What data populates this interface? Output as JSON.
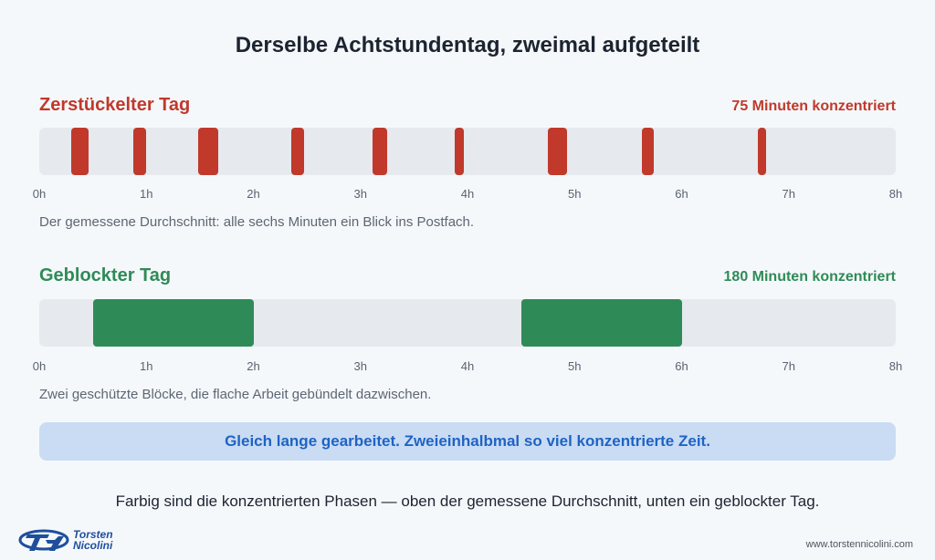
{
  "title": "Derselbe Achtstundentag, zweimal aufgeteilt",
  "chart_data": [
    {
      "type": "bar",
      "orientation": "horizontal-timeline",
      "title": "Zerstückelter Tag",
      "stat": "75 Minuten konzentriert",
      "color": "#c0392b",
      "xlim": [
        0,
        8
      ],
      "x_ticks": [
        "0h",
        "1h",
        "2h",
        "3h",
        "4h",
        "5h",
        "6h",
        "7h",
        "8h"
      ],
      "segments": [
        {
          "start": 0.3,
          "end": 0.46
        },
        {
          "start": 0.88,
          "end": 1.0
        },
        {
          "start": 1.48,
          "end": 1.67
        },
        {
          "start": 2.35,
          "end": 2.47
        },
        {
          "start": 3.11,
          "end": 3.25
        },
        {
          "start": 3.88,
          "end": 3.97
        },
        {
          "start": 4.75,
          "end": 4.93
        },
        {
          "start": 5.63,
          "end": 5.74
        },
        {
          "start": 6.71,
          "end": 6.79
        }
      ],
      "caption": "Der gemessene Durchschnitt: alle sechs Minuten ein Blick ins Postfach."
    },
    {
      "type": "bar",
      "orientation": "horizontal-timeline",
      "title": "Geblockter Tag",
      "stat": "180 Minuten konzentriert",
      "color": "#2e8b57",
      "xlim": [
        0,
        8
      ],
      "x_ticks": [
        "0h",
        "1h",
        "2h",
        "3h",
        "4h",
        "5h",
        "6h",
        "7h",
        "8h"
      ],
      "segments": [
        {
          "start": 0.5,
          "end": 2.0
        },
        {
          "start": 4.5,
          "end": 6.0
        }
      ],
      "caption": "Zwei geschützte Blöcke, die flache Arbeit gebündelt dazwischen."
    }
  ],
  "banner": "Gleich lange gearbeitet. Zweieinhalbmal so viel konzentrierte Zeit.",
  "footer_note": "Farbig sind die konzentrierten Phasen — oben der gemessene Durchschnitt, unten ein geblockter Tag.",
  "logo": {
    "line1": "Torsten",
    "line2": "Nicolini"
  },
  "website": "www.torstennicolini.com"
}
